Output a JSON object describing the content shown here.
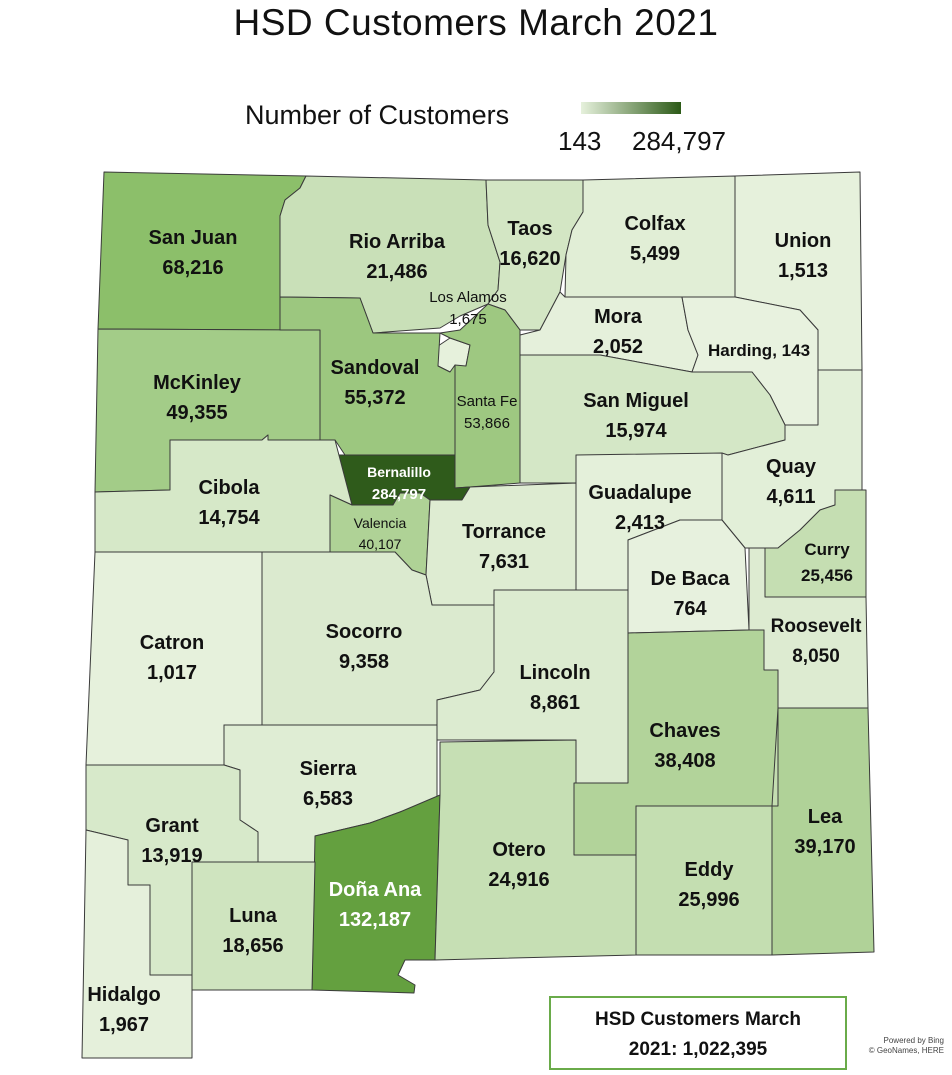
{
  "title": "HSD Customers March 2021",
  "legend": {
    "label": "Number of Customers",
    "min_label": "143",
    "max_label": "284,797",
    "min_value": 143,
    "max_value": 284797,
    "color_low": "#e6f1dc",
    "color_high": "#2c5a17"
  },
  "counties": [
    {
      "key": "san_juan",
      "name": "San Juan",
      "value_label": "68,216",
      "value": 68216,
      "color": "#8cbf6a"
    },
    {
      "key": "rio_arriba",
      "name": "Rio Arriba",
      "value_label": "21,486",
      "value": 21486,
      "color": "#c9e0b8"
    },
    {
      "key": "taos",
      "name": "Taos",
      "value_label": "16,620",
      "value": 16620,
      "color": "#d3e6c4"
    },
    {
      "key": "colfax",
      "name": "Colfax",
      "value_label": "5,499",
      "value": 5499,
      "color": "#e1eed6"
    },
    {
      "key": "union",
      "name": "Union",
      "value_label": "1,513",
      "value": 1513,
      "color": "#e6f1dc"
    },
    {
      "key": "los_alamos",
      "name": "Los Alamos",
      "value_label": "1,675",
      "value": 1675,
      "color": "#e6f1dc"
    },
    {
      "key": "mora",
      "name": "Mora",
      "value_label": "2,052",
      "value": 2052,
      "color": "#e5f0db"
    },
    {
      "key": "harding",
      "name": "Harding",
      "value_label": "143",
      "value": 143,
      "color": "#e8f2df"
    },
    {
      "key": "mckinley",
      "name": "McKinley",
      "value_label": "49,355",
      "value": 49355,
      "color": "#a3cc88"
    },
    {
      "key": "sandoval",
      "name": "Sandoval",
      "value_label": "55,372",
      "value": 55372,
      "color": "#9cc77f"
    },
    {
      "key": "santa_fe",
      "name": "Santa Fe",
      "value_label": "53,866",
      "value": 53866,
      "color": "#9ec881"
    },
    {
      "key": "san_miguel",
      "name": "San Miguel",
      "value_label": "15,974",
      "value": 15974,
      "color": "#d4e7c6"
    },
    {
      "key": "bernalillo",
      "name": "Bernalillo",
      "value_label": "284,797",
      "value": 284797,
      "color": "#2f5b1b"
    },
    {
      "key": "cibola",
      "name": "Cibola",
      "value_label": "14,754",
      "value": 14754,
      "color": "#d6e8c8"
    },
    {
      "key": "valencia",
      "name": "Valencia",
      "value_label": "40,107",
      "value": 40107,
      "color": "#afd296"
    },
    {
      "key": "torrance",
      "name": "Torrance",
      "value_label": "7,631",
      "value": 7631,
      "color": "#deecd2"
    },
    {
      "key": "guadalupe",
      "name": "Guadalupe",
      "value_label": "2,413",
      "value": 2413,
      "color": "#e4f0da"
    },
    {
      "key": "quay",
      "name": "Quay",
      "value_label": "4,611",
      "value": 4611,
      "color": "#e2efd8"
    },
    {
      "key": "curry",
      "name": "Curry",
      "value_label": "25,456",
      "value": 25456,
      "color": "#c5deb2"
    },
    {
      "key": "de_baca",
      "name": "De Baca",
      "value_label": "764",
      "value": 764,
      "color": "#e7f1de"
    },
    {
      "key": "roosevelt",
      "name": "Roosevelt",
      "value_label": "8,050",
      "value": 8050,
      "color": "#ddebd1"
    },
    {
      "key": "catron",
      "name": "Catron",
      "value_label": "1,017",
      "value": 1017,
      "color": "#e6f1dc"
    },
    {
      "key": "socorro",
      "name": "Socorro",
      "value_label": "9,358",
      "value": 9358,
      "color": "#dbeacf"
    },
    {
      "key": "lincoln",
      "name": "Lincoln",
      "value_label": "8,861",
      "value": 8861,
      "color": "#dcebd0"
    },
    {
      "key": "chaves",
      "name": "Chaves",
      "value_label": "38,408",
      "value": 38408,
      "color": "#b2d39a"
    },
    {
      "key": "sierra",
      "name": "Sierra",
      "value_label": "6,583",
      "value": 6583,
      "color": "#dfedd4"
    },
    {
      "key": "grant",
      "name": "Grant",
      "value_label": "13,919",
      "value": 13919,
      "color": "#d7e9ca"
    },
    {
      "key": "dona_ana",
      "name": "Doña Ana",
      "value_label": "132,187",
      "value": 132187,
      "color": "#64a03f"
    },
    {
      "key": "otero",
      "name": "Otero",
      "value_label": "24,916",
      "value": 24916,
      "color": "#c6dfb4"
    },
    {
      "key": "eddy",
      "name": "Eddy",
      "value_label": "25,996",
      "value": 25996,
      "color": "#c4deb1"
    },
    {
      "key": "lea",
      "name": "Lea",
      "value_label": "39,170",
      "value": 39170,
      "color": "#b0d298"
    },
    {
      "key": "luna",
      "name": "Luna",
      "value_label": "18,656",
      "value": 18656,
      "color": "#cfe4bf"
    },
    {
      "key": "hidalgo",
      "name": "Hidalgo",
      "value_label": "1,967",
      "value": 1967,
      "color": "#e5f0db"
    }
  ],
  "total": {
    "line1": "HSD Customers March",
    "line2": "2021: 1,022,395",
    "value": 1022395,
    "border_color": "#6aab4a"
  },
  "credit": {
    "line1": "Powered by Bing",
    "line2": "© GeoNames, HERE"
  }
}
